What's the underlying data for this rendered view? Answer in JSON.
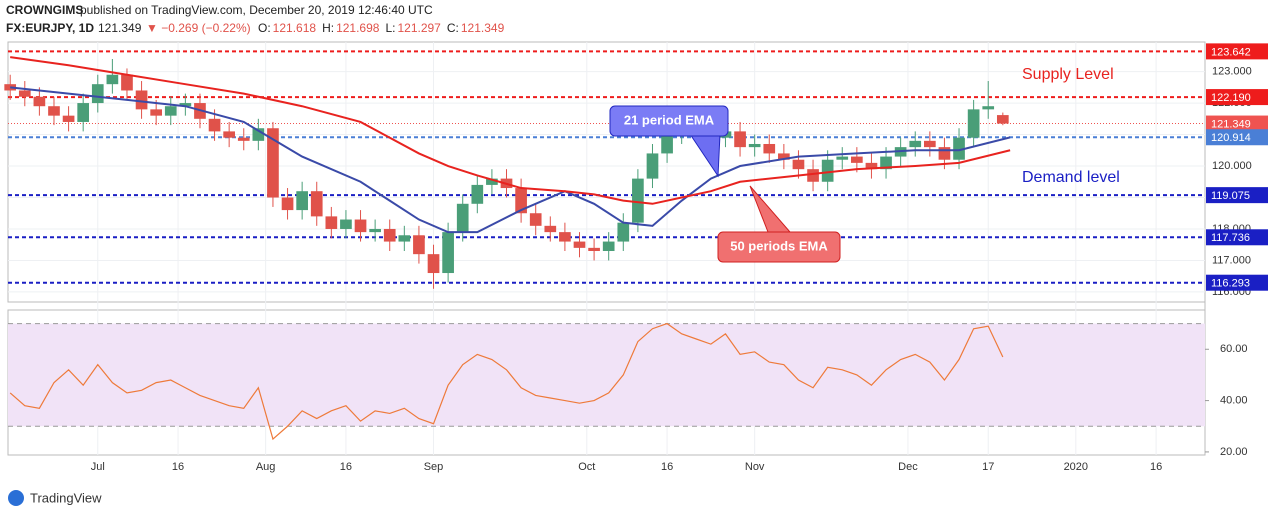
{
  "header": {
    "publisher": "CROWNGIMS",
    "published": "published on TradingView.com, December 20, 2019 12:46:40 UTC",
    "symbol": "FX:EURJPY, 1D",
    "quote": "121.349",
    "change": "▼ −0.269 (−0.22%)",
    "ohlc": [
      {
        "key": "O:",
        "value": "121.618"
      },
      {
        "key": "H:",
        "value": "121.698"
      },
      {
        "key": "L:",
        "value": "121.297"
      },
      {
        "key": "C:",
        "value": "121.349"
      }
    ]
  },
  "footer": {
    "brand": "TradingView"
  },
  "chart_data": [
    {
      "type": "candlestick",
      "grid": true,
      "up_color": "#4a9e78",
      "down_color": "#e0524a",
      "xlim": [
        -0.3,
        163.7
      ],
      "ylim": [
        115.68,
        123.94
      ],
      "xticks": [
        {
          "value": 12,
          "label": "Jul"
        },
        {
          "value": 23,
          "label": "16"
        },
        {
          "value": 35,
          "label": "Aug"
        },
        {
          "value": 46,
          "label": "16"
        },
        {
          "value": 58,
          "label": "Sep"
        },
        {
          "value": 79,
          "label": "Oct"
        },
        {
          "value": 90,
          "label": "16"
        },
        {
          "value": 102,
          "label": "Nov"
        },
        {
          "value": 123,
          "label": "Dec"
        },
        {
          "value": 134,
          "label": "17"
        },
        {
          "value": 146,
          "label": "2020"
        },
        {
          "value": 157,
          "label": "16"
        }
      ],
      "yticks": [
        {
          "value": 116,
          "label": "116.000"
        },
        {
          "value": 117,
          "label": "117.000"
        },
        {
          "value": 118,
          "label": "118.000"
        },
        {
          "value": 119,
          "label": "119.000"
        },
        {
          "value": 120,
          "label": "120.000"
        },
        {
          "value": 121,
          "label": "121.000"
        },
        {
          "value": 122,
          "label": "122.000"
        },
        {
          "value": 123,
          "label": "123.000"
        }
      ],
      "x": [
        0,
        2,
        4,
        6,
        8,
        10,
        12,
        14,
        16,
        18,
        20,
        22,
        24,
        26,
        28,
        30,
        32,
        34,
        36,
        38,
        40,
        42,
        44,
        46,
        48,
        50,
        52,
        54,
        56,
        58,
        60,
        62,
        64,
        66,
        68,
        70,
        72,
        74,
        76,
        78,
        80,
        82,
        84,
        86,
        88,
        90,
        92,
        94,
        96,
        98,
        100,
        102,
        104,
        106,
        108,
        110,
        112,
        114,
        116,
        118,
        120,
        122,
        124,
        126,
        128,
        130,
        132,
        134,
        136
      ],
      "open": [
        122.6,
        122.4,
        122.2,
        121.9,
        121.6,
        121.4,
        122.0,
        122.6,
        122.9,
        122.4,
        121.8,
        121.6,
        121.9,
        122.0,
        121.5,
        121.1,
        120.9,
        120.8,
        121.2,
        119.0,
        118.6,
        119.2,
        118.4,
        118.0,
        118.3,
        117.9,
        118.0,
        117.6,
        117.8,
        117.2,
        116.6,
        117.9,
        118.8,
        119.4,
        119.6,
        119.3,
        118.5,
        118.1,
        117.9,
        117.6,
        117.4,
        117.3,
        117.6,
        118.2,
        119.6,
        120.4,
        121.0,
        121.1,
        121.2,
        120.9,
        121.1,
        120.6,
        120.7,
        120.4,
        120.2,
        119.9,
        119.5,
        120.2,
        120.3,
        120.1,
        119.9,
        120.3,
        120.6,
        120.8,
        120.6,
        120.2,
        120.9,
        121.8,
        121.618
      ],
      "high": [
        122.9,
        122.7,
        122.5,
        122.2,
        121.9,
        122.3,
        122.9,
        123.4,
        123.1,
        122.7,
        122.1,
        122.2,
        122.3,
        122.3,
        121.8,
        121.4,
        121.2,
        121.5,
        121.4,
        119.3,
        119.5,
        119.5,
        118.7,
        118.6,
        118.6,
        118.3,
        118.3,
        118.1,
        118.1,
        117.5,
        118.2,
        119.1,
        119.7,
        119.9,
        119.9,
        119.6,
        118.8,
        118.4,
        118.2,
        117.9,
        117.7,
        117.9,
        118.5,
        119.9,
        120.7,
        121.3,
        121.4,
        121.5,
        121.5,
        121.4,
        121.4,
        121.0,
        121.0,
        120.7,
        120.5,
        120.2,
        120.5,
        120.6,
        120.6,
        120.4,
        120.6,
        120.9,
        121.1,
        121.1,
        120.9,
        121.2,
        122.1,
        122.7,
        121.698
      ],
      "low": [
        122.1,
        121.9,
        121.6,
        121.3,
        121.1,
        121.1,
        121.7,
        122.3,
        122.1,
        121.5,
        121.3,
        121.3,
        121.6,
        121.2,
        120.8,
        120.6,
        120.5,
        120.5,
        118.7,
        118.3,
        118.3,
        118.1,
        117.7,
        117.7,
        117.6,
        117.6,
        117.3,
        117.3,
        116.9,
        116.1,
        116.3,
        117.6,
        118.5,
        119.1,
        119.0,
        118.2,
        117.8,
        117.6,
        117.3,
        117.1,
        117.0,
        117.0,
        117.3,
        117.9,
        119.3,
        120.1,
        120.7,
        120.8,
        120.6,
        120.6,
        120.3,
        120.3,
        120.1,
        119.9,
        119.6,
        119.2,
        119.2,
        119.9,
        119.8,
        119.6,
        119.6,
        120.0,
        120.3,
        120.3,
        119.9,
        119.9,
        120.6,
        121.5,
        121.297
      ],
      "close": [
        122.4,
        122.2,
        121.9,
        121.6,
        121.4,
        122.0,
        122.6,
        122.9,
        122.4,
        121.8,
        121.6,
        121.9,
        122.0,
        121.5,
        121.1,
        120.9,
        120.8,
        121.2,
        119.0,
        118.6,
        119.2,
        118.4,
        118.0,
        118.3,
        117.9,
        118.0,
        117.6,
        117.8,
        117.2,
        116.6,
        117.9,
        118.8,
        119.4,
        119.6,
        119.3,
        118.5,
        118.1,
        117.9,
        117.6,
        117.4,
        117.3,
        117.6,
        118.2,
        119.6,
        120.4,
        121.0,
        121.1,
        121.2,
        120.9,
        121.1,
        120.6,
        120.7,
        120.4,
        120.2,
        119.9,
        119.5,
        120.2,
        120.3,
        120.1,
        119.9,
        120.3,
        120.6,
        120.8,
        120.6,
        120.2,
        120.9,
        121.8,
        121.9,
        121.349
      ],
      "overlays": [
        {
          "name": "21 period EMA",
          "color": "#3a4aa8",
          "x": [
            0,
            8,
            16,
            24,
            32,
            40,
            48,
            56,
            60,
            64,
            70,
            76,
            80,
            84,
            88,
            92,
            96,
            100,
            108,
            116,
            124,
            130,
            137
          ],
          "values": [
            122.5,
            122.3,
            122.1,
            121.9,
            121.4,
            120.3,
            119.5,
            118.3,
            117.9,
            117.9,
            118.6,
            119.2,
            118.8,
            118.2,
            118.1,
            118.9,
            119.6,
            120.0,
            120.3,
            120.4,
            120.5,
            120.5,
            120.91
          ]
        },
        {
          "name": "50 periods EMA",
          "color": "#e8231f",
          "x": [
            0,
            8,
            16,
            24,
            32,
            40,
            48,
            56,
            60,
            64,
            70,
            76,
            80,
            84,
            88,
            92,
            96,
            100,
            108,
            116,
            124,
            130,
            137
          ],
          "values": [
            123.46,
            123.2,
            122.9,
            122.6,
            122.3,
            121.9,
            121.4,
            120.4,
            120.0,
            119.7,
            119.3,
            119.2,
            119.1,
            118.9,
            118.8,
            119.0,
            119.2,
            119.5,
            119.7,
            119.9,
            120.0,
            120.1,
            120.5
          ]
        }
      ],
      "levels": [
        {
          "value": 123.642,
          "color": "#ee1c1c",
          "style": "dashed"
        },
        {
          "value": 122.19,
          "label": "122.190",
          "color": "#ee1c1c",
          "style": "dashed"
        },
        {
          "value": 121.349,
          "color": "#ef5350",
          "style": "dotted"
        },
        {
          "value": 120.914,
          "color": "#4a7fd6",
          "style": "dashed"
        },
        {
          "value": 119.075,
          "color": "#1a1fc4",
          "style": "dashed"
        },
        {
          "value": 117.736,
          "color": "#1a1fc4",
          "style": "dashed"
        },
        {
          "value": 116.293,
          "color": "#1a1fc4",
          "style": "dashed"
        }
      ],
      "annotations": [
        "Supply Level",
        "Demand level"
      ]
    },
    {
      "type": "line",
      "color": "#ee7a3a",
      "band_color": "#f1e3f7",
      "xlim": [
        -0.3,
        163.7
      ],
      "ylim": [
        18.8,
        75.3
      ],
      "bands": [
        30,
        70
      ],
      "yticks": [
        {
          "value": 20,
          "label": "20.00"
        },
        {
          "value": 40,
          "label": "40.00"
        },
        {
          "value": 60,
          "label": "60.00"
        }
      ],
      "x": [
        0,
        2,
        4,
        6,
        8,
        10,
        12,
        14,
        16,
        18,
        20,
        22,
        24,
        26,
        28,
        30,
        32,
        34,
        36,
        38,
        40,
        42,
        44,
        46,
        48,
        50,
        52,
        54,
        56,
        58,
        60,
        62,
        64,
        66,
        68,
        70,
        72,
        74,
        76,
        78,
        80,
        82,
        84,
        86,
        88,
        90,
        92,
        94,
        96,
        98,
        100,
        102,
        104,
        106,
        108,
        110,
        112,
        114,
        116,
        118,
        120,
        122,
        124,
        126,
        128,
        130,
        132,
        134,
        136
      ],
      "values": [
        43,
        38,
        37,
        47,
        52,
        46,
        54,
        47,
        43,
        44,
        47,
        48,
        45,
        42,
        40,
        38,
        37,
        45,
        25,
        30,
        36,
        33,
        36,
        38,
        32,
        36,
        35,
        37,
        33,
        31,
        46,
        54,
        58,
        56,
        52,
        45,
        42,
        41,
        40,
        39,
        40,
        43,
        50,
        63,
        68,
        70,
        66,
        64,
        62,
        66,
        58,
        59,
        55,
        54,
        48,
        45,
        53,
        52,
        50,
        46,
        52,
        56,
        58,
        55,
        48,
        56,
        68,
        69,
        57
      ]
    }
  ]
}
